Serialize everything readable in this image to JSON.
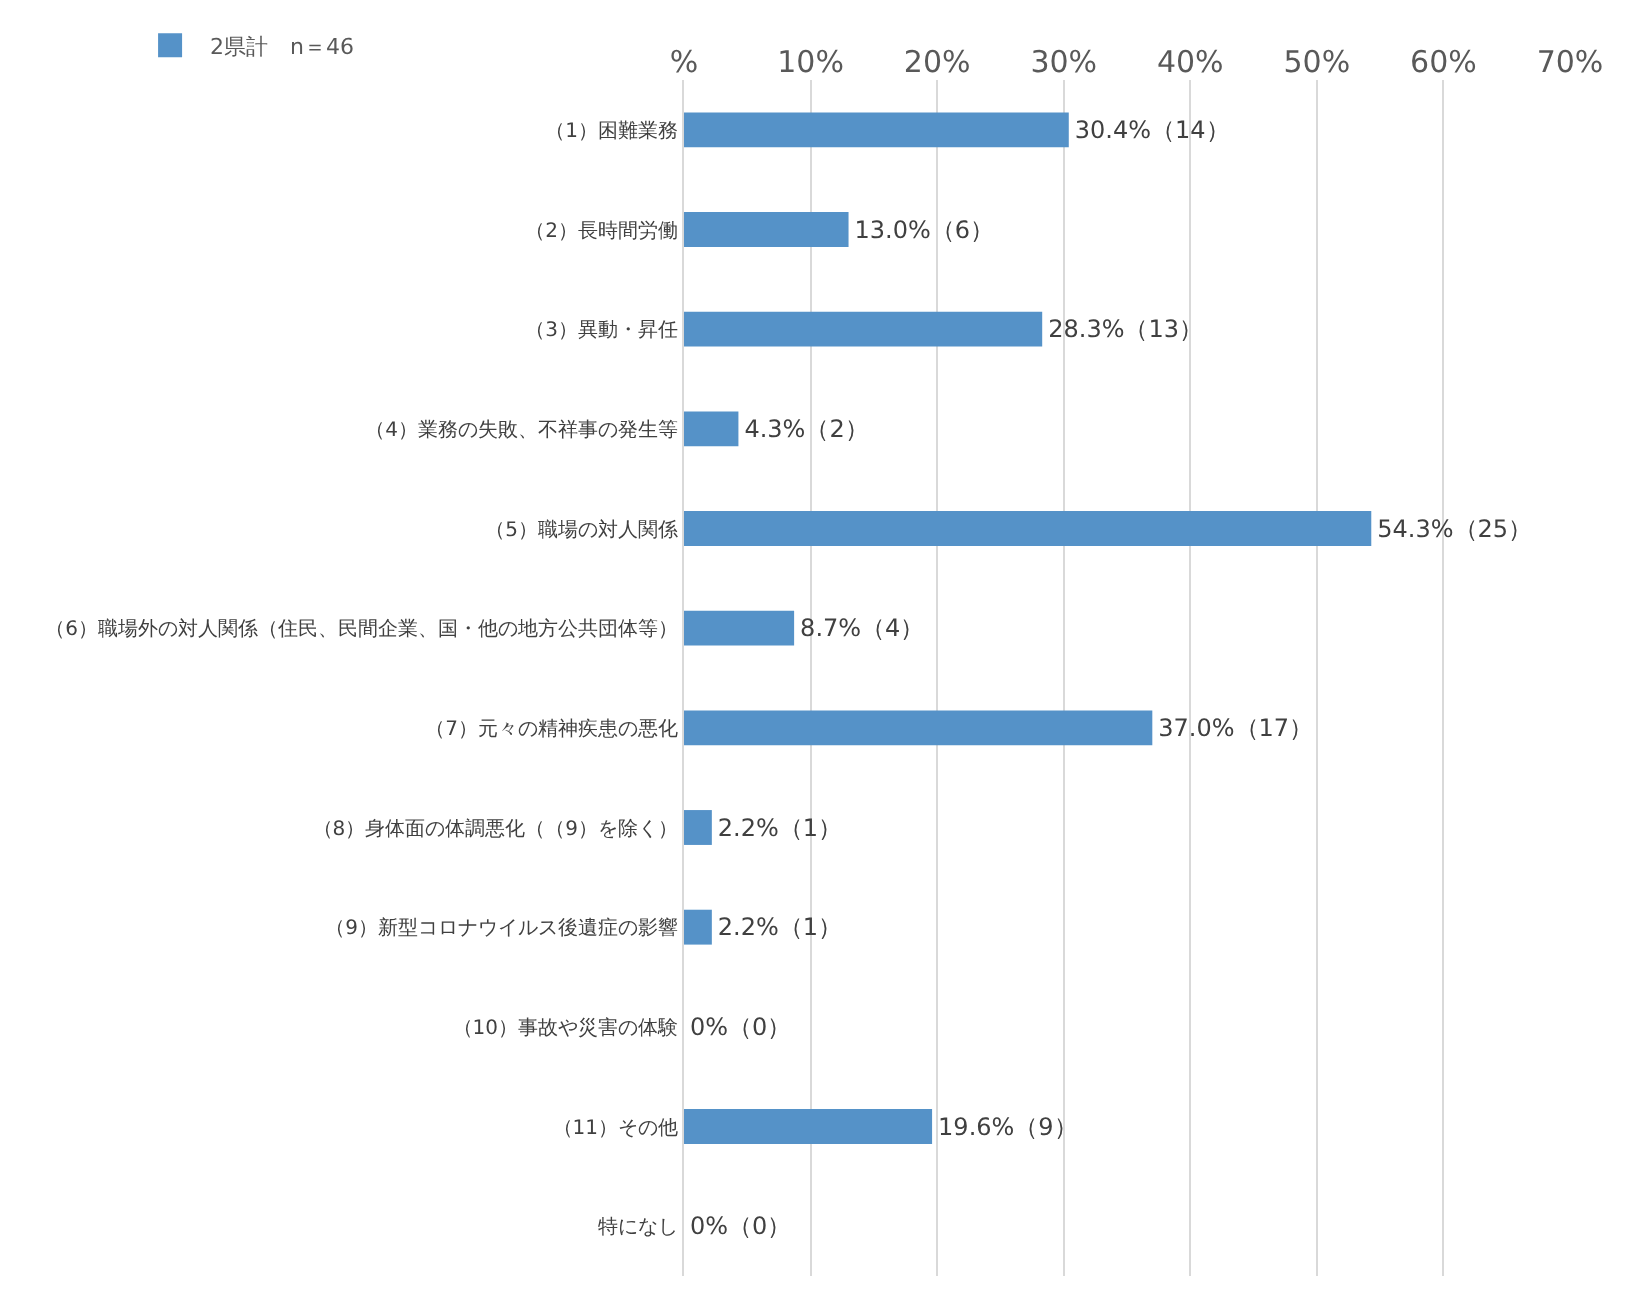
{
  "chart_data": {
    "type": "bar",
    "orientation": "horizontal",
    "categories": [
      "（1）困難業務",
      "（2）長時間労働",
      "（3）異動・昇任",
      "（4）業務の失敗、不祥事の発生等",
      "（5）職場の対人関係",
      "（6）職場外の対人関係（住民、民間企業、国・他の地方公共団体等）",
      "（7）元々の精神疾患の悪化",
      "（8）身体面の体調悪化（（9）を除く）",
      "（9）新型コロナウイルス後遺症の影響",
      "（10）事故や災害の体験",
      "（11）その他",
      "特になし"
    ],
    "series": [
      {
        "name": "2県計　n＝46",
        "color": "#5592c8",
        "values": [
          30.4,
          13.0,
          28.3,
          4.3,
          54.3,
          8.7,
          37.0,
          2.2,
          2.2,
          0,
          19.6,
          0
        ],
        "value_labels": [
          "30.4%（14）",
          "13.0%（6）",
          "28.3%（13）",
          "4.3%（2）",
          "54.3%（25）",
          "8.7%（4）",
          "37.0%（17）",
          "2.2%（1）",
          "2.2%（1）",
          "0%（0）",
          "19.6%（9）",
          "0%（0）"
        ]
      }
    ],
    "xlim": [
      0,
      70
    ],
    "xticks": [
      {
        "value": 0,
        "label": "%"
      },
      {
        "value": 10,
        "label": "10%"
      },
      {
        "value": 20,
        "label": "20%"
      },
      {
        "value": 30,
        "label": "30%"
      },
      {
        "value": 40,
        "label": "40%"
      },
      {
        "value": 50,
        "label": "50%"
      },
      {
        "value": 60,
        "label": "60%"
      },
      {
        "value": 70,
        "label": "70%"
      }
    ],
    "grid": "x",
    "legend": "top left"
  }
}
